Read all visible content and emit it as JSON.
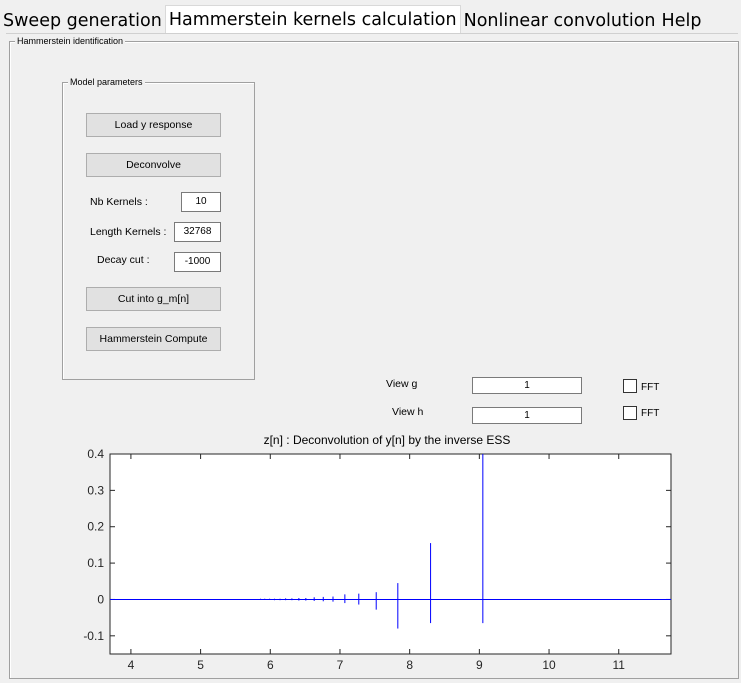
{
  "tabs": [
    {
      "label": "Sweep generation",
      "active": false
    },
    {
      "label": "Hammerstein kernels calculation",
      "active": true
    },
    {
      "label": "Nonlinear convolution",
      "active": false
    },
    {
      "label": "Help",
      "active": false
    }
  ],
  "identification_frame": {
    "title": "Hammerstein identification"
  },
  "model_parameters": {
    "title": "Model parameters",
    "load_button": "Load y response",
    "deconvolve_button": "Deconvolve",
    "nb_kernels_label": "Nb Kernels :",
    "nb_kernels_value": "10",
    "length_kernels_label": "Length Kernels :",
    "length_kernels_value": "32768",
    "decay_cut_label": "Decay cut :",
    "decay_cut_value": "-1000",
    "cut_button": "Cut into g_m[n]",
    "compute_button": "Hammerstein Compute"
  },
  "view_g": {
    "label": "View g",
    "value": "1",
    "fft_label": "FFT",
    "fft_checked": false
  },
  "view_h": {
    "label": "View h",
    "value": "1",
    "fft_label": "FFT",
    "fft_checked": false
  },
  "chart_data": {
    "type": "line",
    "title": "z[n] : Deconvolution of y[n] by the inverse ESS",
    "xlabel": "",
    "ylabel": "",
    "xlim": [
      3.7,
      11.75
    ],
    "ylim": [
      -0.15,
      0.4
    ],
    "xticks": [
      4,
      5,
      6,
      7,
      8,
      9,
      10,
      11
    ],
    "yticks": [
      -0.1,
      0,
      0.1,
      0.2,
      0.3,
      0.4
    ],
    "ytick_labels": [
      "-0.1",
      "0",
      "0.1",
      "0.2",
      "0.3",
      "0.4"
    ],
    "grid": false,
    "color": "#0000ff",
    "baseline": 0,
    "impulses": [
      {
        "x": 9.05,
        "ymin": -0.065,
        "ymax": 0.4
      },
      {
        "x": 8.3,
        "ymin": -0.065,
        "ymax": 0.155
      },
      {
        "x": 7.83,
        "ymin": -0.08,
        "ymax": 0.045
      },
      {
        "x": 7.52,
        "ymin": -0.028,
        "ymax": 0.02
      },
      {
        "x": 7.27,
        "ymin": -0.014,
        "ymax": 0.016
      },
      {
        "x": 7.07,
        "ymin": -0.01,
        "ymax": 0.014
      },
      {
        "x": 6.9,
        "ymin": -0.006,
        "ymax": 0.008
      },
      {
        "x": 6.76,
        "ymin": -0.005,
        "ymax": 0.007
      },
      {
        "x": 6.63,
        "ymin": -0.004,
        "ymax": 0.006
      },
      {
        "x": 6.51,
        "ymin": -0.003,
        "ymax": 0.004
      },
      {
        "x": 6.41,
        "ymin": -0.003,
        "ymax": 0.004
      },
      {
        "x": 6.31,
        "ymin": -0.002,
        "ymax": 0.003
      },
      {
        "x": 6.22,
        "ymin": -0.002,
        "ymax": 0.003
      },
      {
        "x": 6.14,
        "ymin": -0.002,
        "ymax": 0.002
      },
      {
        "x": 6.06,
        "ymin": -0.002,
        "ymax": 0.002
      },
      {
        "x": 5.99,
        "ymin": -0.001,
        "ymax": 0.002
      },
      {
        "x": 5.92,
        "ymin": -0.001,
        "ymax": 0.002
      },
      {
        "x": 5.86,
        "ymin": -0.001,
        "ymax": 0.002
      },
      {
        "x": 5.8,
        "ymin": -0.001,
        "ymax": 0.001
      },
      {
        "x": 5.74,
        "ymin": -0.001,
        "ymax": 0.001
      },
      {
        "x": 5.69,
        "ymin": -0.001,
        "ymax": 0.001
      },
      {
        "x": 5.64,
        "ymin": -0.001,
        "ymax": 0.001
      },
      {
        "x": 5.45,
        "ymin": -0.001,
        "ymax": 0.001
      }
    ]
  }
}
